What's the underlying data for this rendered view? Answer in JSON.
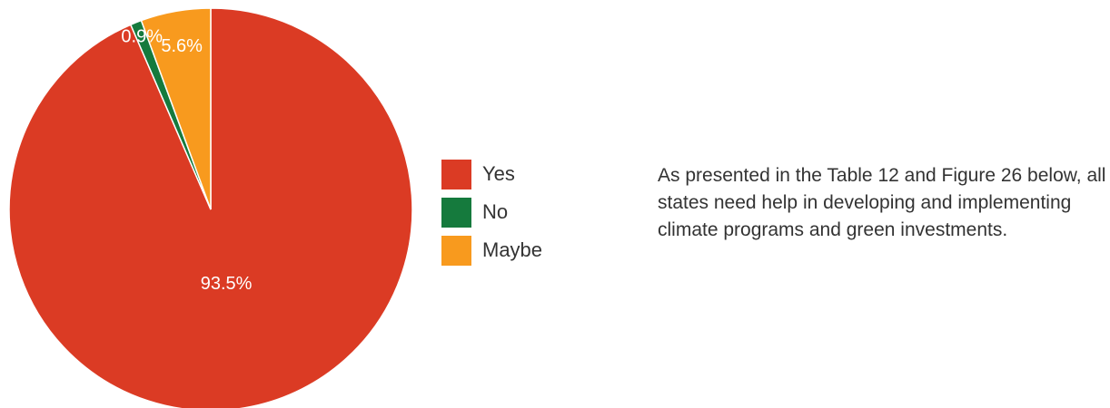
{
  "chart_data": {
    "type": "pie",
    "title": "",
    "slices": [
      {
        "name": "Yes",
        "value": 93.5,
        "label": "93.5%",
        "color": "#db3b24"
      },
      {
        "name": "No",
        "value": 0.9,
        "label": "0.9%",
        "color": "#157a3d"
      },
      {
        "name": "Maybe",
        "value": 5.6,
        "label": "5.6%",
        "color": "#f89a1e"
      }
    ],
    "legend_placement": "right"
  },
  "legend": {
    "items": [
      {
        "label": "Yes",
        "color": "#db3b24"
      },
      {
        "label": "No",
        "color": "#157a3d"
      },
      {
        "label": "Maybe",
        "color": "#f89a1e"
      }
    ]
  },
  "text": {
    "paragraph": "As presented in the Table 12 and Figure 26 below, all states need help in developing and implementing climate programs and green investments."
  }
}
